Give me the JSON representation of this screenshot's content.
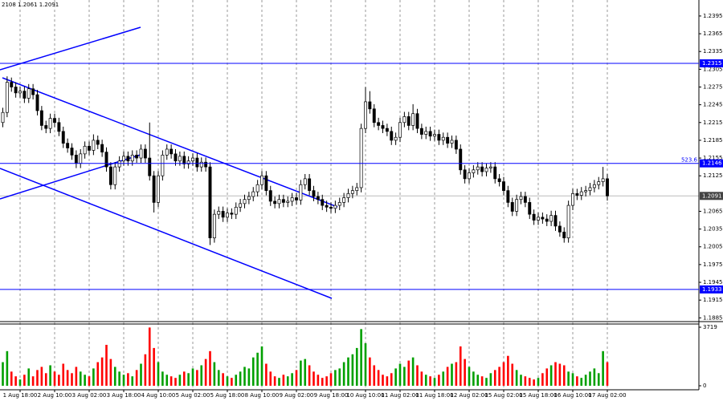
{
  "chart_data": {
    "type": "candlestick",
    "header_text": "2108 1.2061 1.2091",
    "ylim": [
      1.188,
      1.2422
    ],
    "yticks": [
      1.2395,
      1.2365,
      1.2335,
      1.2305,
      1.2275,
      1.2245,
      1.2215,
      1.2185,
      1.2155,
      1.2125,
      1.2065,
      1.2035,
      1.2005,
      1.1975,
      1.1945,
      1.1915,
      1.1885
    ],
    "hlines": [
      1.2315,
      1.2146,
      1.1933
    ],
    "hline_color": "#0000ff",
    "hline_note": "523.6",
    "current_price": 1.2091,
    "volume_ylim": [
      0,
      3719
    ],
    "volume_yticks": [
      0,
      3719
    ],
    "up_color": "#ffffff",
    "down_color": "#000000",
    "volume_up_color": "#00a000",
    "volume_down_color": "#ff0000",
    "grid": true,
    "categories": [
      null,
      null,
      null,
      null,
      "1 Aug 18:00",
      null,
      null,
      null,
      null,
      null,
      null,
      null,
      "2 Aug 10:00",
      null,
      null,
      null,
      null,
      null,
      null,
      null,
      "3 Aug 02:00",
      null,
      null,
      null,
      null,
      null,
      null,
      null,
      "3 Aug 18:00",
      null,
      null,
      null,
      null,
      null,
      null,
      null,
      "4 Aug 10:00",
      null,
      null,
      null,
      null,
      null,
      null,
      null,
      "5 Aug 02:00",
      null,
      null,
      null,
      null,
      null,
      null,
      null,
      "5 Aug 18:00",
      null,
      null,
      null,
      null,
      null,
      null,
      null,
      "8 Aug 10:00",
      null,
      null,
      null,
      null,
      null,
      null,
      null,
      "9 Aug 02:00",
      null,
      null,
      null,
      null,
      null,
      null,
      null,
      "9 Aug 18:00",
      null,
      null,
      null,
      null,
      null,
      null,
      null,
      "10 Aug 10:00",
      null,
      null,
      null,
      null,
      null,
      null,
      null,
      "11 Aug 02:00",
      null,
      null,
      null,
      null,
      null,
      null,
      null,
      "11 Aug 18:00",
      null,
      null,
      null,
      null,
      null,
      null,
      null,
      "12 Aug 02:00",
      null,
      null,
      null,
      null,
      null,
      null,
      null,
      "15 Aug 02:00",
      null,
      null,
      null,
      null,
      null,
      null,
      null,
      "15 Aug 18:00",
      null,
      null,
      null,
      null,
      null,
      null,
      null,
      "16 Aug 10:00",
      null,
      null,
      null,
      null,
      null,
      null,
      null,
      "17 Aug 02:00"
    ],
    "ohlc": [
      [
        1.2215,
        1.224,
        1.2207,
        1.2232
      ],
      [
        1.2232,
        1.2293,
        1.2224,
        1.2283
      ],
      [
        1.2283,
        1.2291,
        1.2267,
        1.2275
      ],
      [
        1.2275,
        1.2283,
        1.2257,
        1.2265
      ],
      [
        1.2265,
        1.2276,
        1.2257,
        1.2268
      ],
      [
        1.2268,
        1.2276,
        1.2248,
        1.2256
      ],
      [
        1.2256,
        1.228,
        1.2248,
        1.2272
      ],
      [
        1.2272,
        1.228,
        1.2254,
        1.2262
      ],
      [
        1.2262,
        1.227,
        1.2227,
        1.2235
      ],
      [
        1.2235,
        1.2243,
        1.2202,
        1.221
      ],
      [
        1.221,
        1.2218,
        1.2197,
        1.2205
      ],
      [
        1.2205,
        1.223,
        1.2197,
        1.2222
      ],
      [
        1.2222,
        1.223,
        1.2207,
        1.2215
      ],
      [
        1.2215,
        1.2223,
        1.2192,
        1.22
      ],
      [
        1.22,
        1.2208,
        1.2172,
        1.218
      ],
      [
        1.218,
        1.2188,
        1.2164,
        1.2172
      ],
      [
        1.2172,
        1.218,
        1.2152,
        1.216
      ],
      [
        1.216,
        1.2168,
        1.2138,
        1.2146
      ],
      [
        1.2146,
        1.217,
        1.2138,
        1.2162
      ],
      [
        1.2162,
        1.2183,
        1.2154,
        1.2175
      ],
      [
        1.2175,
        1.2183,
        1.216,
        1.2168
      ],
      [
        1.2168,
        1.2195,
        1.216,
        1.2185
      ],
      [
        1.2185,
        1.2193,
        1.217,
        1.2178
      ],
      [
        1.2178,
        1.2186,
        1.2157,
        1.2165
      ],
      [
        1.2165,
        1.2173,
        1.2132,
        1.214
      ],
      [
        1.214,
        1.2148,
        1.2102,
        1.211
      ],
      [
        1.211,
        1.2148,
        1.2102,
        1.214
      ],
      [
        1.214,
        1.2158,
        1.2132,
        1.215
      ],
      [
        1.215,
        1.2166,
        1.2142,
        1.2158
      ],
      [
        1.2158,
        1.2166,
        1.2142,
        1.215
      ],
      [
        1.215,
        1.2168,
        1.2142,
        1.216
      ],
      [
        1.216,
        1.2168,
        1.2147,
        1.2155
      ],
      [
        1.2155,
        1.2178,
        1.2147,
        1.217
      ],
      [
        1.217,
        1.2178,
        1.2147,
        1.2155
      ],
      [
        1.2155,
        1.2215,
        1.2117,
        1.2125
      ],
      [
        1.2125,
        1.2133,
        1.2063,
        1.208
      ],
      [
        1.208,
        1.2133,
        1.2072,
        1.2125
      ],
      [
        1.2125,
        1.2168,
        1.2117,
        1.216
      ],
      [
        1.216,
        1.2178,
        1.2152,
        1.217
      ],
      [
        1.217,
        1.2178,
        1.2154,
        1.2162
      ],
      [
        1.2162,
        1.217,
        1.2142,
        1.215
      ],
      [
        1.215,
        1.2166,
        1.2142,
        1.2158
      ],
      [
        1.2158,
        1.2166,
        1.2137,
        1.2145
      ],
      [
        1.2145,
        1.2158,
        1.2137,
        1.215
      ],
      [
        1.215,
        1.2163,
        1.2142,
        1.2155
      ],
      [
        1.2155,
        1.2163,
        1.2132,
        1.214
      ],
      [
        1.214,
        1.2156,
        1.2132,
        1.2148
      ],
      [
        1.2148,
        1.2156,
        1.2132,
        1.214
      ],
      [
        1.214,
        1.2148,
        1.2008,
        1.202
      ],
      [
        1.202,
        1.2068,
        1.2012,
        1.206
      ],
      [
        1.206,
        1.2073,
        1.2052,
        1.2065
      ],
      [
        1.2065,
        1.2073,
        1.2047,
        1.2055
      ],
      [
        1.2055,
        1.207,
        1.2047,
        1.2062
      ],
      [
        1.2062,
        1.207,
        1.2052,
        1.206
      ],
      [
        1.206,
        1.208,
        1.2052,
        1.2072
      ],
      [
        1.2072,
        1.2086,
        1.2064,
        1.2078
      ],
      [
        1.2078,
        1.2093,
        1.207,
        1.2085
      ],
      [
        1.2085,
        1.2098,
        1.2077,
        1.209
      ],
      [
        1.209,
        1.2106,
        1.2082,
        1.2098
      ],
      [
        1.2098,
        1.2118,
        1.209,
        1.211
      ],
      [
        1.211,
        1.2133,
        1.2102,
        1.2125
      ],
      [
        1.2125,
        1.2133,
        1.2092,
        1.21
      ],
      [
        1.21,
        1.2108,
        1.2074,
        1.2082
      ],
      [
        1.2082,
        1.209,
        1.207,
        1.2078
      ],
      [
        1.2078,
        1.2093,
        1.207,
        1.2085
      ],
      [
        1.2085,
        1.2093,
        1.2072,
        1.208
      ],
      [
        1.208,
        1.209,
        1.2072,
        1.2082
      ],
      [
        1.2082,
        1.2096,
        1.2074,
        1.2088
      ],
      [
        1.2088,
        1.2096,
        1.2076,
        1.2084
      ],
      [
        1.2084,
        1.2118,
        1.2076,
        1.211
      ],
      [
        1.211,
        1.2128,
        1.2102,
        1.212
      ],
      [
        1.212,
        1.2128,
        1.2092,
        1.21
      ],
      [
        1.21,
        1.2108,
        1.2082,
        1.209
      ],
      [
        1.209,
        1.2098,
        1.2077,
        1.2085
      ],
      [
        1.2085,
        1.2093,
        1.2067,
        1.2075
      ],
      [
        1.2075,
        1.2083,
        1.2064,
        1.2072
      ],
      [
        1.2072,
        1.208,
        1.2062,
        1.207
      ],
      [
        1.207,
        1.2083,
        1.2062,
        1.2075
      ],
      [
        1.2075,
        1.2088,
        1.2067,
        1.208
      ],
      [
        1.208,
        1.2096,
        1.2072,
        1.2088
      ],
      [
        1.2088,
        1.2103,
        1.208,
        1.2095
      ],
      [
        1.2095,
        1.2108,
        1.2087,
        1.21
      ],
      [
        1.21,
        1.2113,
        1.2092,
        1.2105
      ],
      [
        1.2105,
        1.2213,
        1.2097,
        1.2205
      ],
      [
        1.2205,
        1.2275,
        1.2197,
        1.225
      ],
      [
        1.225,
        1.2268,
        1.223,
        1.2238
      ],
      [
        1.2238,
        1.2246,
        1.2207,
        1.2215
      ],
      [
        1.2215,
        1.2223,
        1.2202,
        1.221
      ],
      [
        1.221,
        1.2218,
        1.2197,
        1.2205
      ],
      [
        1.2205,
        1.2213,
        1.2192,
        1.22
      ],
      [
        1.22,
        1.2208,
        1.2177,
        1.2185
      ],
      [
        1.2185,
        1.2198,
        1.2177,
        1.219
      ],
      [
        1.219,
        1.2223,
        1.2182,
        1.2215
      ],
      [
        1.2215,
        1.2233,
        1.2207,
        1.2225
      ],
      [
        1.2225,
        1.2233,
        1.2202,
        1.221
      ],
      [
        1.221,
        1.2246,
        1.2202,
        1.223
      ],
      [
        1.223,
        1.2238,
        1.2197,
        1.2205
      ],
      [
        1.2205,
        1.2213,
        1.2187,
        1.2195
      ],
      [
        1.2195,
        1.2208,
        1.2187,
        1.22
      ],
      [
        1.22,
        1.2208,
        1.2184,
        1.2192
      ],
      [
        1.2192,
        1.2203,
        1.2184,
        1.2195
      ],
      [
        1.2195,
        1.2203,
        1.2177,
        1.2185
      ],
      [
        1.2185,
        1.2198,
        1.2177,
        1.219
      ],
      [
        1.219,
        1.2198,
        1.2172,
        1.218
      ],
      [
        1.218,
        1.2193,
        1.2172,
        1.2185
      ],
      [
        1.2185,
        1.2193,
        1.2162,
        1.217
      ],
      [
        1.217,
        1.2178,
        1.2127,
        1.2135
      ],
      [
        1.2135,
        1.2143,
        1.2112,
        1.212
      ],
      [
        1.212,
        1.2138,
        1.2112,
        1.213
      ],
      [
        1.213,
        1.2143,
        1.2122,
        1.2135
      ],
      [
        1.2135,
        1.2148,
        1.2127,
        1.214
      ],
      [
        1.214,
        1.2148,
        1.2124,
        1.2132
      ],
      [
        1.2132,
        1.2146,
        1.2124,
        1.2138
      ],
      [
        1.2138,
        1.2148,
        1.213,
        1.214
      ],
      [
        1.214,
        1.2148,
        1.2112,
        1.212
      ],
      [
        1.212,
        1.2128,
        1.2107,
        1.2115
      ],
      [
        1.2115,
        1.2123,
        1.2092,
        1.21
      ],
      [
        1.21,
        1.2108,
        1.2072,
        1.208
      ],
      [
        1.208,
        1.2088,
        1.2057,
        1.2065
      ],
      [
        1.2065,
        1.2093,
        1.2057,
        1.2085
      ],
      [
        1.2085,
        1.2098,
        1.2077,
        1.209
      ],
      [
        1.209,
        1.2098,
        1.2072,
        1.208
      ],
      [
        1.208,
        1.2088,
        1.2052,
        1.206
      ],
      [
        1.206,
        1.2068,
        1.2042,
        1.205
      ],
      [
        1.205,
        1.2063,
        1.2042,
        1.2055
      ],
      [
        1.2055,
        1.2063,
        1.2044,
        1.2052
      ],
      [
        1.2052,
        1.206,
        1.204,
        1.2048
      ],
      [
        1.2048,
        1.2066,
        1.204,
        1.2058
      ],
      [
        1.2058,
        1.2066,
        1.2032,
        1.204
      ],
      [
        1.204,
        1.2048,
        1.2022,
        1.203
      ],
      [
        1.203,
        1.2038,
        1.2012,
        1.202
      ],
      [
        1.202,
        1.2083,
        1.2012,
        1.2075
      ],
      [
        1.2075,
        1.2103,
        1.2067,
        1.2095
      ],
      [
        1.2095,
        1.2103,
        1.2084,
        1.2092
      ],
      [
        1.2092,
        1.2106,
        1.2084,
        1.2098
      ],
      [
        1.2098,
        1.2108,
        1.209,
        1.21
      ],
      [
        1.21,
        1.2113,
        1.2092,
        1.2105
      ],
      [
        1.2105,
        1.2118,
        1.2097,
        1.211
      ],
      [
        1.211,
        1.2123,
        1.2102,
        1.2115
      ],
      [
        1.2115,
        1.214,
        1.2107,
        1.212
      ],
      [
        1.212,
        1.2128,
        1.2083,
        1.2091
      ]
    ],
    "volume": [
      1500,
      2200,
      900,
      600,
      400,
      700,
      1100,
      600,
      1000,
      1200,
      800,
      1300,
      900,
      700,
      1400,
      1000,
      800,
      1200,
      900,
      700,
      600,
      1100,
      1500,
      1800,
      2600,
      1700,
      1200,
      900,
      700,
      800,
      600,
      1000,
      1400,
      2000,
      3700,
      2400,
      1500,
      900,
      700,
      600,
      500,
      700,
      900,
      800,
      1100,
      1000,
      1300,
      1700,
      2200,
      1500,
      1000,
      800,
      600,
      500,
      700,
      900,
      1200,
      1100,
      1800,
      2100,
      2500,
      1400,
      900,
      600,
      500,
      700,
      600,
      800,
      1000,
      1600,
      1700,
      1300,
      900,
      700,
      500,
      600,
      800,
      1000,
      1100,
      1500,
      1800,
      2000,
      2400,
      3600,
      2700,
      1800,
      1300,
      1000,
      700,
      600,
      800,
      1100,
      1400,
      1200,
      1600,
      1800,
      1300,
      900,
      700,
      600,
      500,
      700,
      900,
      1200,
      1400,
      1500,
      2500,
      1700,
      1200,
      900,
      700,
      600,
      500,
      800,
      1000,
      1200,
      1500,
      1900,
      1400,
      1000,
      700,
      600,
      500,
      400,
      500,
      800,
      1100,
      1300,
      1500,
      1400,
      1300,
      900,
      800,
      600,
      500,
      700,
      900,
      1100,
      800,
      2200,
      1500
    ]
  }
}
